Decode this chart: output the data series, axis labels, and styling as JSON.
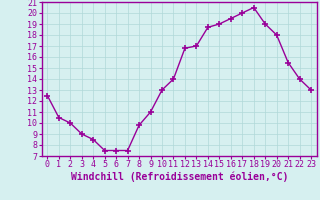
{
  "x": [
    0,
    1,
    2,
    3,
    4,
    5,
    6,
    7,
    8,
    9,
    10,
    11,
    12,
    13,
    14,
    15,
    16,
    17,
    18,
    19,
    20,
    21,
    22,
    23
  ],
  "y": [
    12.5,
    10.5,
    10.0,
    9.0,
    8.5,
    7.5,
    7.5,
    7.5,
    9.8,
    11.0,
    13.0,
    14.0,
    16.8,
    17.0,
    18.7,
    19.0,
    19.5,
    20.0,
    20.5,
    19.0,
    18.0,
    15.5,
    14.0,
    13.0
  ],
  "line_color": "#990099",
  "marker": "+",
  "markersize": 4,
  "linewidth": 1,
  "xlabel": "Windchill (Refroidissement éolien,°C)",
  "xlabel_fontsize": 7,
  "xlim": [
    -0.5,
    23.5
  ],
  "ylim": [
    7,
    21
  ],
  "yticks": [
    7,
    8,
    9,
    10,
    11,
    12,
    13,
    14,
    15,
    16,
    17,
    18,
    19,
    20,
    21
  ],
  "xticks": [
    0,
    1,
    2,
    3,
    4,
    5,
    6,
    7,
    8,
    9,
    10,
    11,
    12,
    13,
    14,
    15,
    16,
    17,
    18,
    19,
    20,
    21,
    22,
    23
  ],
  "background_color": "#d6f0f0",
  "grid_color": "#b0d8d8",
  "tick_color": "#990099",
  "tick_fontsize": 6,
  "label_color": "#990099",
  "axis_color": "#990099",
  "figure_bg": "#d6f0f0"
}
